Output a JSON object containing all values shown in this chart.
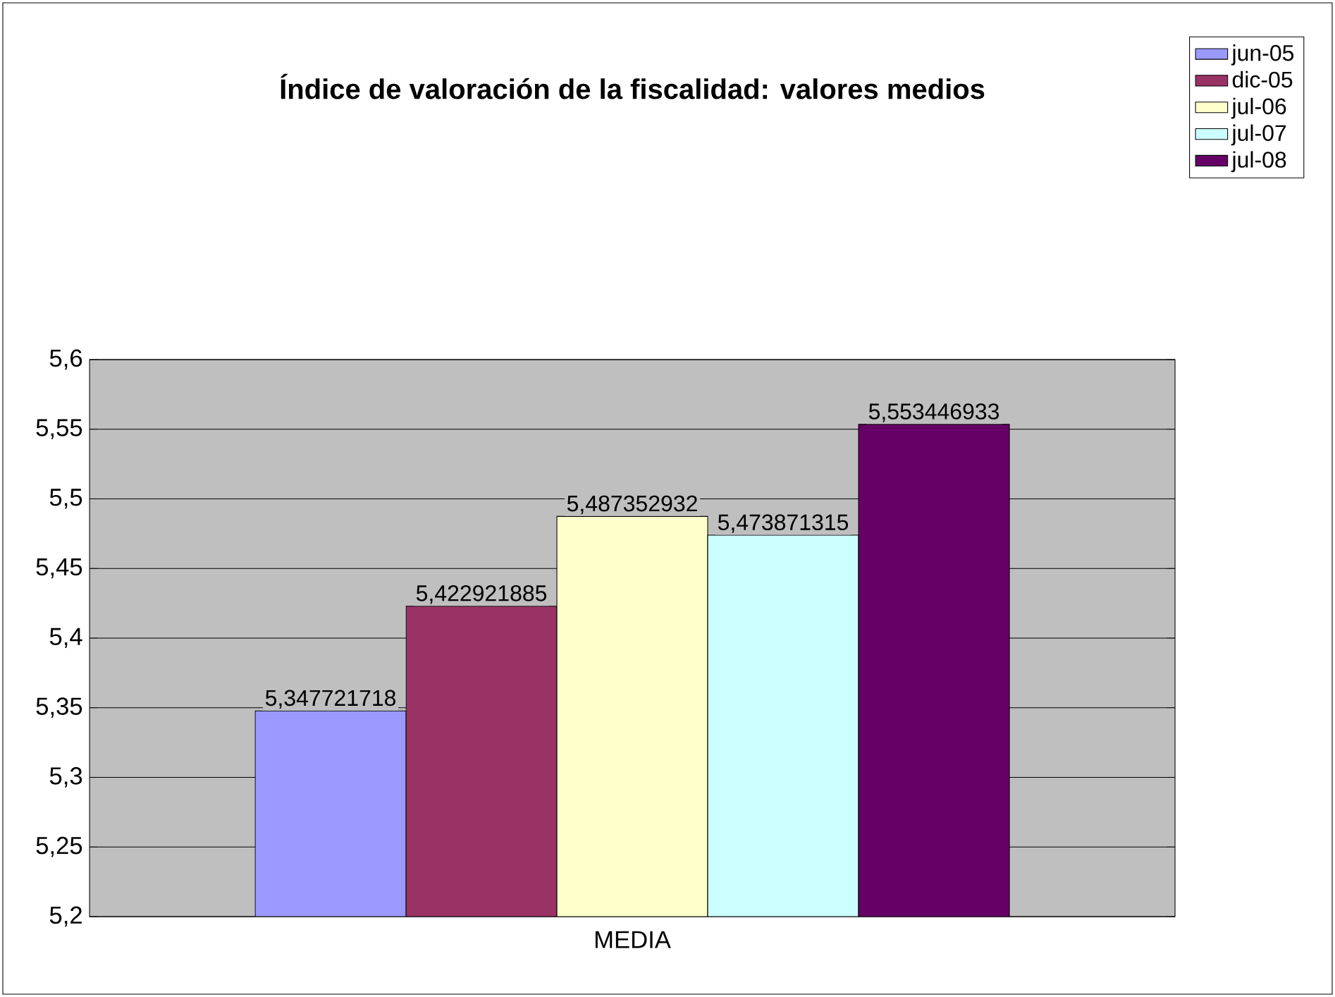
{
  "chart_data": {
    "type": "bar",
    "title": "Índice de valoración de la fiscalidad: valores medios",
    "categories": [
      "MEDIA"
    ],
    "series": [
      {
        "name": "jun-05",
        "color": "#9999ff",
        "values": [
          5.347721718
        ],
        "value_labels": [
          "5,347721718"
        ]
      },
      {
        "name": "dic-05",
        "color": "#993366",
        "values": [
          5.422921885
        ],
        "value_labels": [
          "5,422921885"
        ]
      },
      {
        "name": "jul-06",
        "color": "#ffffcc",
        "values": [
          5.487352932
        ],
        "value_labels": [
          "5,487352932"
        ]
      },
      {
        "name": "jul-07",
        "color": "#ccffff",
        "values": [
          5.473871315
        ],
        "value_labels": [
          "5,473871315"
        ]
      },
      {
        "name": "jul-08",
        "color": "#660066",
        "values": [
          5.553446933
        ],
        "value_labels": [
          "5,553446933"
        ]
      }
    ],
    "ylim": [
      5.2,
      5.6
    ],
    "yticks": [
      {
        "value": 5.2,
        "label": "5,2"
      },
      {
        "value": 5.25,
        "label": "5,25"
      },
      {
        "value": 5.3,
        "label": "5,3"
      },
      {
        "value": 5.35,
        "label": "5,35"
      },
      {
        "value": 5.4,
        "label": "5,4"
      },
      {
        "value": 5.45,
        "label": "5,45"
      },
      {
        "value": 5.5,
        "label": "5,5"
      },
      {
        "value": 5.55,
        "label": "5,55"
      },
      {
        "value": 5.6,
        "label": "5,6"
      }
    ],
    "grid": "y",
    "legend": "top right"
  }
}
